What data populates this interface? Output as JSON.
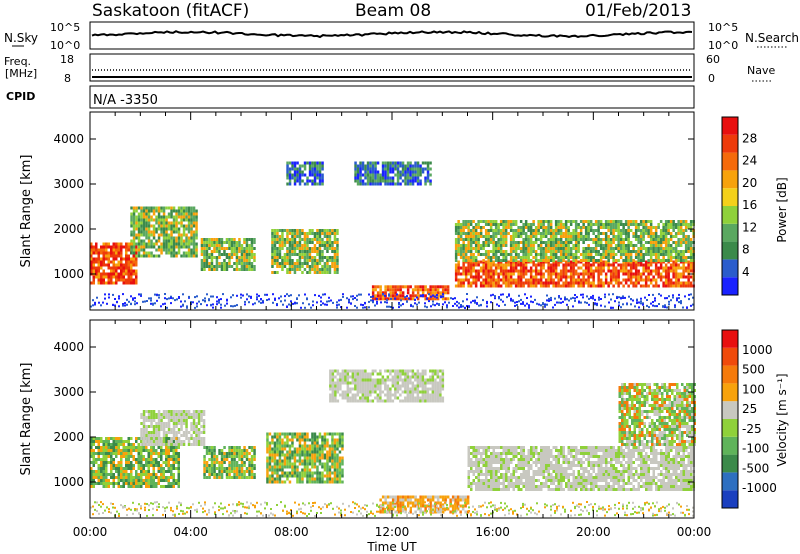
{
  "header": {
    "station": "Saskatoon (fitACF)",
    "beam": "Beam 08",
    "date": "01/Feb/2013"
  },
  "status_panels": {
    "nsky_label": "N.Sky",
    "nsky_ticks": [
      "10^5",
      "10^0"
    ],
    "nsearch_label": "N.Search",
    "nsearch_ticks": [
      "10^5",
      "10^0"
    ],
    "freq_label_1": "Freq.",
    "freq_label_2": "[MHz]",
    "freq_ticks": [
      "18",
      "8"
    ],
    "nave_label": "Nave",
    "nave_ticks": [
      "60",
      "0"
    ],
    "cpid_label": "CPID",
    "cpid_value": "N/A -3350"
  },
  "chart_data": [
    {
      "type": "heatmap",
      "name": "power",
      "ylabel": "Slant Range [km]",
      "xlabel": "Time UT",
      "ylim": [
        200,
        4600
      ],
      "xlim_hours": [
        0,
        24
      ],
      "y_ticks": [
        1000,
        2000,
        3000,
        4000
      ],
      "x_tick_labels": [
        "00:00",
        "04:00",
        "08:00",
        "12:00",
        "16:00",
        "20:00",
        "00:00"
      ],
      "colorbar": {
        "label": "Power [dB]",
        "tick_labels": [
          "4",
          "8",
          "12",
          "16",
          "20",
          "24",
          "28"
        ],
        "colors": [
          "#1a22ff",
          "#2a5ccc",
          "#3b8a4a",
          "#5aa860",
          "#8fd13a",
          "#f4d11a",
          "#f7a20c",
          "#f56a0a",
          "#ee3a0a",
          "#e80f0f"
        ]
      },
      "regions": [
        {
          "t0": 0.0,
          "t1": 1.8,
          "r0": 800,
          "r1": 1700,
          "level": "high"
        },
        {
          "t0": 1.6,
          "t1": 4.2,
          "r0": 1400,
          "r1": 2500,
          "level": "mid"
        },
        {
          "t0": 4.4,
          "t1": 6.5,
          "r0": 1100,
          "r1": 1800,
          "level": "mid"
        },
        {
          "t0": 7.2,
          "t1": 9.8,
          "r0": 1000,
          "r1": 2000,
          "level": "mid"
        },
        {
          "t0": 7.8,
          "t1": 9.2,
          "r0": 3000,
          "r1": 3500,
          "level": "low"
        },
        {
          "t0": 10.5,
          "t1": 13.5,
          "r0": 3000,
          "r1": 3500,
          "level": "low"
        },
        {
          "t0": 11.2,
          "t1": 14.2,
          "r0": 450,
          "r1": 750,
          "level": "high"
        },
        {
          "t0": 14.5,
          "t1": 24.0,
          "r0": 700,
          "r1": 1300,
          "level": "high"
        },
        {
          "t0": 14.5,
          "t1": 24.0,
          "r0": 1300,
          "r1": 2200,
          "level": "mid"
        }
      ]
    },
    {
      "type": "heatmap",
      "name": "velocity",
      "ylabel": "Slant Range [km]",
      "xlabel": "Time UT",
      "ylim": [
        200,
        4600
      ],
      "xlim_hours": [
        0,
        24
      ],
      "y_ticks": [
        1000,
        2000,
        3000,
        4000
      ],
      "x_tick_labels": [
        "00:00",
        "04:00",
        "08:00",
        "12:00",
        "16:00",
        "20:00",
        "00:00"
      ],
      "colorbar": {
        "label": "Velocity [m s⁻¹]",
        "tick_labels": [
          "1000",
          "500",
          "100",
          "25",
          "-25",
          "-100",
          "-500",
          "-1000"
        ],
        "colors": [
          "#1a3fbf",
          "#2d6fc0",
          "#3b8a4a",
          "#5fb35a",
          "#8fd13a",
          "#c8c8c0",
          "#f7a20c",
          "#f57a0a",
          "#f04a0a",
          "#e80f0f"
        ]
      },
      "regions": [
        {
          "t0": 0.0,
          "t1": 3.5,
          "r0": 900,
          "r1": 2000,
          "level": "greenish"
        },
        {
          "t0": 2.0,
          "t1": 4.5,
          "r0": 1800,
          "r1": 2600,
          "level": "ground"
        },
        {
          "t0": 4.5,
          "t1": 6.5,
          "r0": 1100,
          "r1": 1800,
          "level": "greenish"
        },
        {
          "t0": 7.0,
          "t1": 10.0,
          "r0": 1000,
          "r1": 2100,
          "level": "greenish"
        },
        {
          "t0": 9.5,
          "t1": 14.0,
          "r0": 2800,
          "r1": 3500,
          "level": "ground"
        },
        {
          "t0": 11.5,
          "t1": 15.0,
          "r0": 300,
          "r1": 700,
          "level": "orange"
        },
        {
          "t0": 15.0,
          "t1": 24.0,
          "r0": 800,
          "r1": 1800,
          "level": "ground"
        },
        {
          "t0": 21.0,
          "t1": 24.0,
          "r0": 1800,
          "r1": 3200,
          "level": "mixed"
        }
      ]
    }
  ]
}
